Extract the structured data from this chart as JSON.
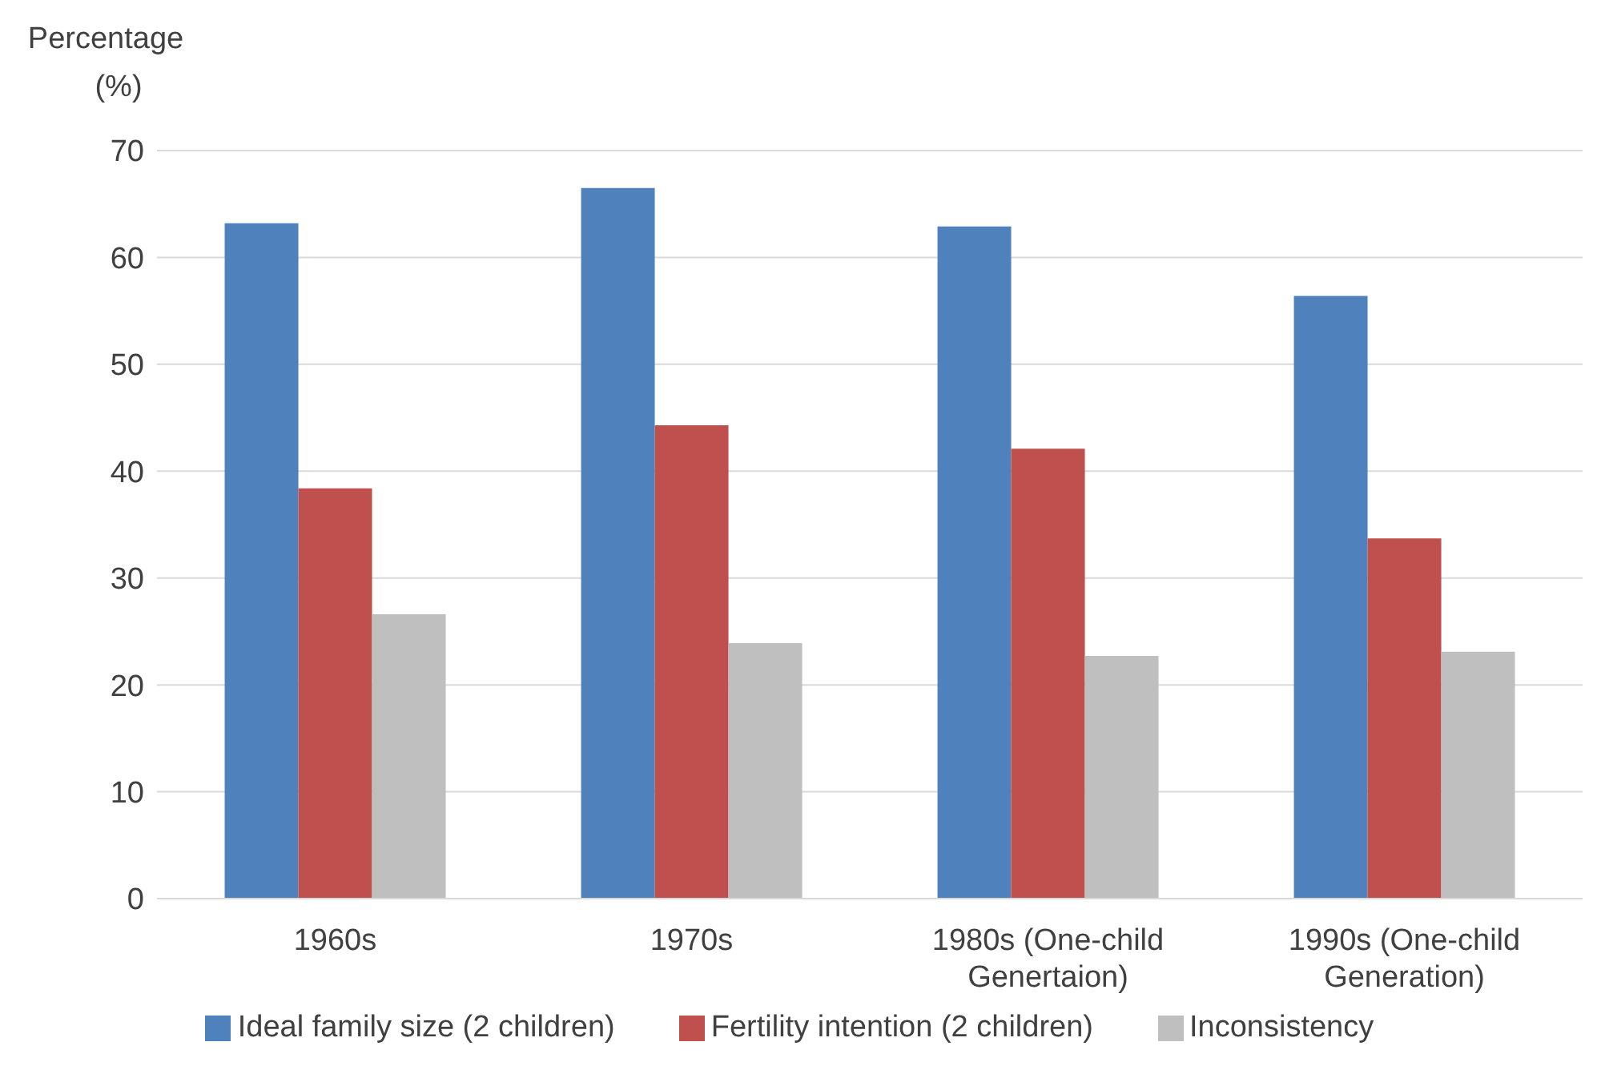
{
  "chart_data": {
    "type": "bar",
    "ylabel": "Percentage (%)",
    "categories": [
      "1960s",
      "1970s",
      "1980s (One-child Genertaion)",
      "1990s (One-child Generation)"
    ],
    "series": [
      {
        "name": "Ideal family size (2 children)",
        "color": "#4f81bd",
        "values": [
          63.2,
          66.5,
          62.9,
          56.4
        ]
      },
      {
        "name": "Fertility intention (2 children)",
        "color": "#c0504d",
        "values": [
          38.4,
          44.3,
          42.1,
          33.7
        ]
      },
      {
        "name": "Inconsistency",
        "color": "#bfbfbf",
        "values": [
          26.6,
          23.9,
          22.7,
          23.1
        ]
      }
    ],
    "ylim": [
      0,
      70
    ],
    "yticks": [
      0,
      10,
      20,
      30,
      40,
      50,
      60,
      70
    ],
    "grid": "y",
    "legend": "bottom"
  }
}
